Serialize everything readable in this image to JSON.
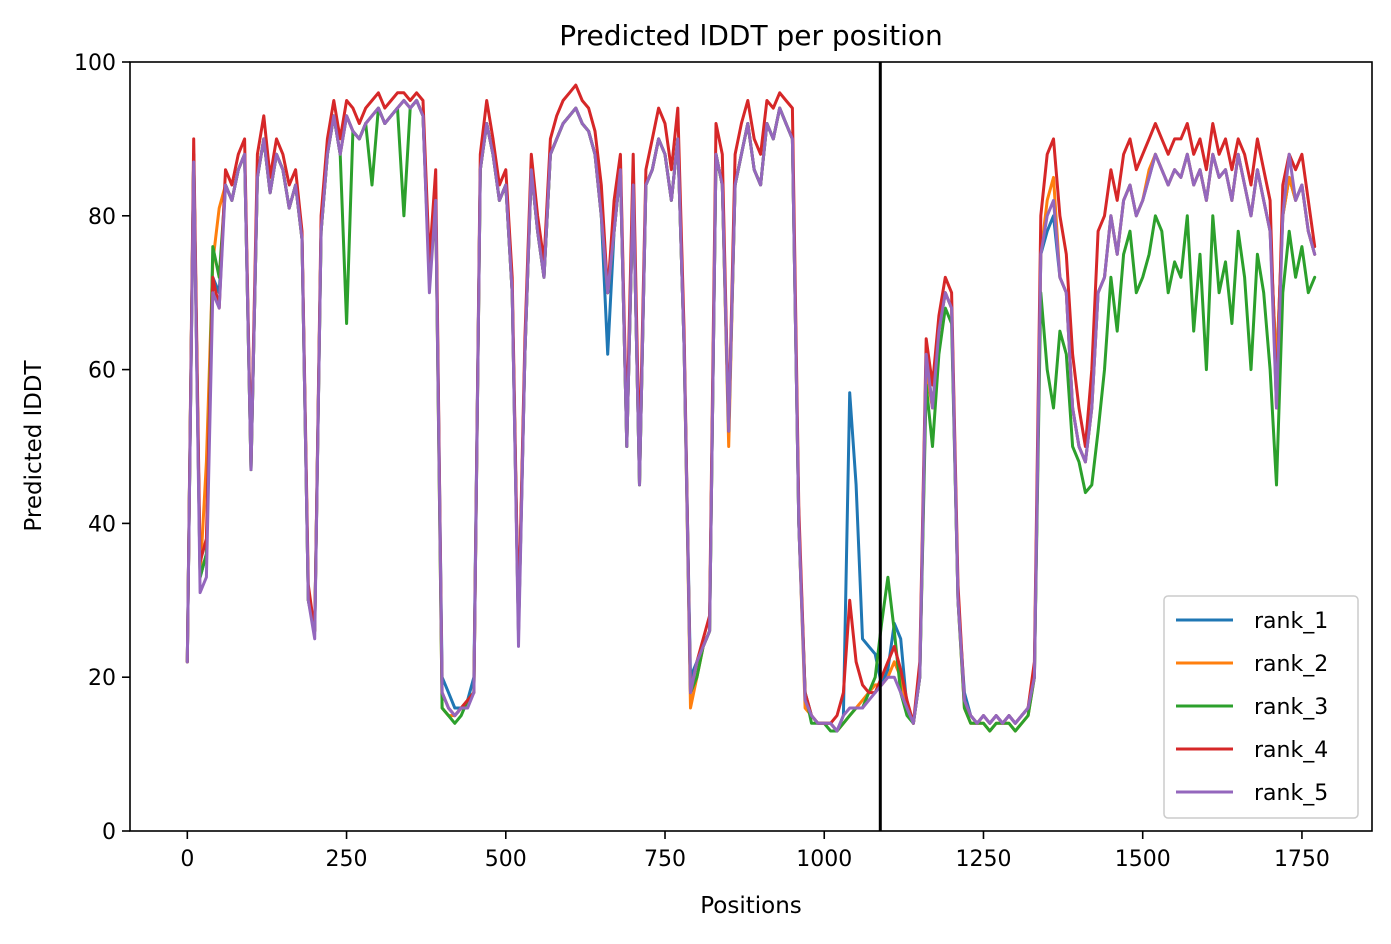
{
  "chart_data": {
    "type": "line",
    "title": "Predicted lDDT per position",
    "xlabel": "Positions",
    "ylabel": "Predicted lDDT",
    "xlim": [
      -90,
      1860
    ],
    "ylim": [
      0,
      100
    ],
    "xticks": [
      0,
      250,
      500,
      750,
      1000,
      1250,
      1500,
      1750
    ],
    "yticks": [
      0,
      20,
      40,
      60,
      80,
      100
    ],
    "grid": false,
    "legend_position": "lower right",
    "vline_x": 1088,
    "x": [
      0,
      10,
      20,
      30,
      40,
      50,
      60,
      70,
      80,
      90,
      100,
      110,
      120,
      130,
      140,
      150,
      160,
      170,
      180,
      190,
      200,
      210,
      220,
      230,
      240,
      250,
      260,
      270,
      280,
      290,
      300,
      310,
      320,
      330,
      340,
      350,
      360,
      370,
      380,
      390,
      400,
      410,
      420,
      430,
      440,
      450,
      460,
      470,
      480,
      490,
      500,
      510,
      520,
      530,
      540,
      550,
      560,
      570,
      580,
      590,
      600,
      610,
      620,
      630,
      640,
      650,
      660,
      670,
      680,
      690,
      700,
      710,
      720,
      730,
      740,
      750,
      760,
      770,
      780,
      790,
      800,
      810,
      820,
      830,
      840,
      850,
      860,
      870,
      880,
      890,
      900,
      910,
      920,
      930,
      940,
      950,
      960,
      970,
      980,
      990,
      1000,
      1010,
      1020,
      1030,
      1040,
      1050,
      1060,
      1070,
      1080,
      1090,
      1100,
      1110,
      1120,
      1130,
      1140,
      1150,
      1160,
      1170,
      1180,
      1190,
      1200,
      1210,
      1220,
      1230,
      1240,
      1250,
      1260,
      1270,
      1280,
      1290,
      1300,
      1310,
      1320,
      1330,
      1340,
      1350,
      1360,
      1370,
      1380,
      1390,
      1400,
      1410,
      1420,
      1430,
      1440,
      1450,
      1460,
      1470,
      1480,
      1490,
      1500,
      1510,
      1520,
      1530,
      1540,
      1550,
      1560,
      1570,
      1580,
      1590,
      1600,
      1610,
      1620,
      1630,
      1640,
      1650,
      1660,
      1670,
      1680,
      1690,
      1700,
      1710,
      1720,
      1730,
      1740,
      1750,
      1760,
      1770
    ],
    "series": [
      {
        "name": "rank_1",
        "color": "#1f77b4",
        "values": [
          22,
          88,
          33,
          36,
          72,
          70,
          84,
          82,
          86,
          88,
          47,
          85,
          90,
          83,
          88,
          86,
          81,
          84,
          77,
          30,
          26,
          78,
          88,
          93,
          88,
          93,
          91,
          90,
          92,
          93,
          94,
          92,
          93,
          94,
          95,
          94,
          95,
          93,
          72,
          82,
          20,
          18,
          16,
          16,
          17,
          20,
          86,
          92,
          88,
          82,
          84,
          70,
          26,
          62,
          86,
          78,
          72,
          88,
          90,
          92,
          93,
          94,
          92,
          91,
          88,
          80,
          62,
          78,
          86,
          50,
          84,
          45,
          84,
          86,
          90,
          88,
          82,
          90,
          63,
          20,
          22,
          24,
          26,
          88,
          84,
          52,
          84,
          88,
          92,
          86,
          84,
          92,
          90,
          94,
          92,
          90,
          40,
          18,
          15,
          14,
          14,
          14,
          13,
          15,
          57,
          45,
          25,
          24,
          23,
          19,
          21,
          27,
          25,
          16,
          14,
          20,
          62,
          55,
          65,
          70,
          68,
          30,
          18,
          15,
          14,
          15,
          14,
          15,
          14,
          15,
          14,
          15,
          16,
          20,
          75,
          78,
          80,
          72,
          70,
          55,
          50,
          48,
          55,
          70,
          72,
          80,
          75,
          82,
          84,
          80,
          82,
          85,
          88,
          86,
          84,
          86,
          85,
          88,
          84,
          86,
          82,
          88,
          85,
          86,
          82,
          88,
          84,
          80,
          86,
          82,
          78,
          60,
          80,
          85,
          82,
          84,
          78,
          75
        ]
      },
      {
        "name": "rank_2",
        "color": "#ff7f0e",
        "values": [
          22,
          88,
          33,
          48,
          74,
          81,
          84,
          82,
          86,
          88,
          47,
          85,
          90,
          83,
          88,
          86,
          81,
          84,
          77,
          30,
          26,
          78,
          88,
          93,
          88,
          93,
          91,
          90,
          92,
          93,
          94,
          92,
          93,
          94,
          95,
          94,
          95,
          93,
          72,
          82,
          16,
          15,
          15,
          16,
          17,
          18,
          86,
          92,
          88,
          82,
          84,
          70,
          26,
          62,
          86,
          78,
          72,
          88,
          90,
          92,
          93,
          94,
          92,
          91,
          88,
          80,
          70,
          78,
          86,
          50,
          84,
          45,
          84,
          86,
          90,
          88,
          82,
          90,
          63,
          16,
          20,
          24,
          26,
          88,
          84,
          50,
          84,
          88,
          92,
          86,
          84,
          92,
          90,
          94,
          92,
          90,
          40,
          16,
          15,
          14,
          14,
          14,
          13,
          14,
          15,
          16,
          17,
          18,
          19,
          19,
          20,
          22,
          20,
          16,
          14,
          20,
          60,
          55,
          65,
          70,
          68,
          30,
          16,
          14,
          14,
          14,
          13,
          14,
          14,
          14,
          13,
          14,
          15,
          20,
          75,
          82,
          85,
          72,
          70,
          55,
          50,
          48,
          55,
          70,
          72,
          80,
          75,
          82,
          84,
          80,
          82,
          86,
          88,
          86,
          84,
          86,
          85,
          88,
          84,
          86,
          82,
          88,
          85,
          86,
          82,
          88,
          84,
          80,
          86,
          82,
          78,
          60,
          80,
          85,
          82,
          84,
          78,
          75
        ]
      },
      {
        "name": "rank_3",
        "color": "#2ca02c",
        "values": [
          22,
          88,
          33,
          36,
          76,
          72,
          84,
          82,
          86,
          88,
          47,
          85,
          90,
          83,
          88,
          86,
          81,
          84,
          77,
          30,
          26,
          78,
          88,
          93,
          88,
          66,
          91,
          90,
          92,
          84,
          94,
          92,
          93,
          94,
          80,
          94,
          95,
          93,
          72,
          82,
          16,
          15,
          14,
          15,
          17,
          18,
          86,
          92,
          88,
          82,
          84,
          70,
          26,
          62,
          86,
          78,
          72,
          88,
          90,
          92,
          93,
          94,
          92,
          91,
          88,
          80,
          70,
          78,
          86,
          50,
          84,
          45,
          84,
          86,
          90,
          88,
          82,
          90,
          63,
          18,
          20,
          24,
          26,
          88,
          84,
          52,
          84,
          88,
          92,
          86,
          84,
          92,
          90,
          94,
          92,
          90,
          40,
          18,
          14,
          14,
          14,
          13,
          13,
          14,
          15,
          16,
          16,
          18,
          20,
          27,
          33,
          26,
          18,
          15,
          14,
          20,
          58,
          50,
          62,
          68,
          66,
          30,
          16,
          14,
          14,
          14,
          13,
          14,
          14,
          14,
          13,
          14,
          15,
          20,
          70,
          60,
          55,
          65,
          62,
          50,
          48,
          44,
          45,
          52,
          60,
          72,
          65,
          75,
          78,
          70,
          72,
          75,
          80,
          78,
          70,
          74,
          72,
          80,
          65,
          75,
          60,
          80,
          70,
          74,
          66,
          78,
          72,
          60,
          75,
          70,
          60,
          45,
          70,
          78,
          72,
          76,
          70,
          72
        ]
      },
      {
        "name": "rank_4",
        "color": "#d62728",
        "values": [
          22,
          90,
          35,
          38,
          72,
          68,
          86,
          84,
          88,
          90,
          48,
          88,
          93,
          85,
          90,
          88,
          84,
          86,
          78,
          32,
          26,
          80,
          90,
          95,
          90,
          95,
          94,
          92,
          94,
          95,
          96,
          94,
          95,
          96,
          96,
          95,
          96,
          95,
          74,
          86,
          18,
          16,
          15,
          16,
          17,
          18,
          88,
          95,
          90,
          84,
          86,
          72,
          27,
          64,
          88,
          80,
          74,
          90,
          93,
          95,
          96,
          97,
          95,
          94,
          91,
          84,
          70,
          82,
          88,
          52,
          88,
          48,
          86,
          90,
          94,
          92,
          86,
          94,
          65,
          18,
          22,
          25,
          28,
          92,
          88,
          52,
          88,
          92,
          95,
          90,
          88,
          95,
          94,
          96,
          95,
          94,
          42,
          18,
          15,
          14,
          14,
          14,
          15,
          18,
          30,
          22,
          19,
          18,
          18,
          20,
          22,
          24,
          21,
          17,
          14,
          22,
          64,
          58,
          67,
          72,
          70,
          32,
          17,
          15,
          14,
          15,
          14,
          15,
          14,
          15,
          14,
          15,
          16,
          22,
          80,
          88,
          90,
          80,
          75,
          62,
          55,
          50,
          60,
          78,
          80,
          86,
          82,
          88,
          90,
          86,
          88,
          90,
          92,
          90,
          88,
          90,
          90,
          92,
          88,
          90,
          86,
          92,
          88,
          90,
          86,
          90,
          88,
          84,
          90,
          86,
          82,
          55,
          84,
          88,
          86,
          88,
          82,
          76
        ]
      },
      {
        "name": "rank_5",
        "color": "#9467bd",
        "values": [
          22,
          87,
          31,
          33,
          70,
          68,
          84,
          82,
          86,
          88,
          47,
          85,
          90,
          83,
          88,
          86,
          81,
          84,
          77,
          30,
          25,
          78,
          88,
          93,
          88,
          93,
          91,
          90,
          92,
          93,
          94,
          92,
          93,
          94,
          95,
          94,
          95,
          93,
          70,
          82,
          18,
          16,
          15,
          16,
          16,
          18,
          86,
          92,
          88,
          82,
          84,
          70,
          24,
          62,
          86,
          78,
          72,
          88,
          90,
          92,
          93,
          94,
          92,
          91,
          88,
          80,
          70,
          78,
          86,
          50,
          84,
          45,
          84,
          86,
          90,
          88,
          82,
          90,
          63,
          18,
          22,
          24,
          26,
          88,
          84,
          52,
          84,
          88,
          92,
          86,
          84,
          92,
          90,
          94,
          92,
          90,
          40,
          17,
          15,
          14,
          14,
          14,
          13,
          15,
          16,
          16,
          16,
          17,
          18,
          19,
          20,
          20,
          18,
          16,
          14,
          20,
          62,
          55,
          65,
          70,
          68,
          30,
          17,
          15,
          14,
          15,
          14,
          15,
          14,
          15,
          14,
          15,
          16,
          20,
          75,
          80,
          82,
          72,
          70,
          55,
          50,
          48,
          55,
          70,
          72,
          80,
          75,
          82,
          84,
          80,
          82,
          85,
          88,
          86,
          84,
          86,
          85,
          88,
          84,
          86,
          82,
          88,
          85,
          86,
          82,
          88,
          84,
          80,
          86,
          82,
          78,
          55,
          80,
          88,
          82,
          84,
          78,
          75
        ]
      }
    ]
  }
}
